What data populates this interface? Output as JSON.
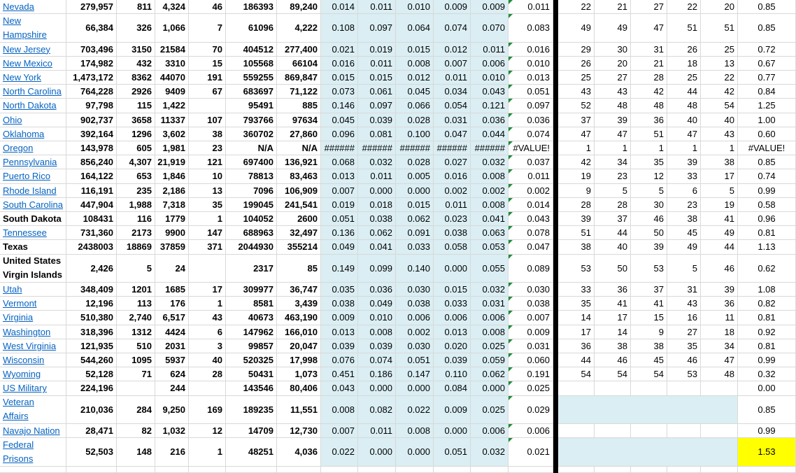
{
  "rows": [
    {
      "name": "Nevada",
      "cells": [
        "279,957",
        "811",
        "4,324",
        "46",
        "186393",
        "89,240",
        "0.014",
        "0.011",
        "0.010",
        "0.009",
        "0.009",
        "0.011",
        "22",
        "21",
        "27",
        "22",
        "20",
        "0.85"
      ]
    },
    {
      "name": "New Hampshire",
      "cells": [
        "66,384",
        "326",
        "1,066",
        "7",
        "61096",
        "4,222",
        "0.108",
        "0.097",
        "0.064",
        "0.074",
        "0.070",
        "0.083",
        "49",
        "49",
        "47",
        "51",
        "51",
        "0.85"
      ]
    },
    {
      "name": "New Jersey",
      "cells": [
        "703,496",
        "3150",
        "21584",
        "70",
        "404512",
        "277,400",
        "0.021",
        "0.019",
        "0.015",
        "0.012",
        "0.011",
        "0.016",
        "29",
        "30",
        "31",
        "26",
        "25",
        "0.72"
      ]
    },
    {
      "name": "New Mexico",
      "cells": [
        "174,982",
        "432",
        "3310",
        "15",
        "105568",
        "66104",
        "0.016",
        "0.011",
        "0.008",
        "0.007",
        "0.006",
        "0.010",
        "26",
        "20",
        "21",
        "18",
        "13",
        "0.67"
      ]
    },
    {
      "name": "New York",
      "cells": [
        "1,473,172",
        "8362",
        "44070",
        "191",
        "559255",
        "869,847",
        "0.015",
        "0.015",
        "0.012",
        "0.011",
        "0.010",
        "0.013",
        "25",
        "27",
        "28",
        "25",
        "22",
        "0.77"
      ]
    },
    {
      "name": "North Carolina",
      "cells": [
        "764,228",
        "2926",
        "9409",
        "67",
        "683697",
        "71,122",
        "0.073",
        "0.061",
        "0.045",
        "0.034",
        "0.043",
        "0.051",
        "43",
        "43",
        "42",
        "44",
        "42",
        "0.84"
      ]
    },
    {
      "name": "North Dakota",
      "cells": [
        "97,798",
        "115",
        "1,422",
        null,
        "95491",
        "885",
        "0.146",
        "0.097",
        "0.066",
        "0.054",
        "0.121",
        "0.097",
        "52",
        "48",
        "48",
        "48",
        "54",
        "1.25"
      ]
    },
    {
      "name": "Ohio",
      "cells": [
        "902,737",
        "3658",
        "11337",
        "107",
        "793766",
        "97634",
        "0.045",
        "0.039",
        "0.028",
        "0.031",
        "0.036",
        "0.036",
        "37",
        "39",
        "36",
        "40",
        "40",
        "1.00"
      ]
    },
    {
      "name": "Oklahoma",
      "cells": [
        "392,164",
        "1296",
        "3,602",
        "38",
        "360702",
        "27,860",
        "0.096",
        "0.081",
        "0.100",
        "0.047",
        "0.044",
        "0.074",
        "47",
        "47",
        "51",
        "47",
        "43",
        "0.60"
      ]
    },
    {
      "name": "Oregon",
      "cells": [
        "143,978",
        "605",
        "1,981",
        "23",
        "N/A",
        "N/A",
        "######",
        "######",
        "######",
        "######",
        "######",
        "#VALUE!",
        "1",
        "1",
        "1",
        "1",
        "1",
        "#VALUE!"
      ]
    },
    {
      "name": "Pennsylvania",
      "cells": [
        "856,240",
        "4,307",
        "21,919",
        "121",
        "697400",
        "136,921",
        "0.068",
        "0.032",
        "0.028",
        "0.027",
        "0.032",
        "0.037",
        "42",
        "34",
        "35",
        "39",
        "38",
        "0.85"
      ]
    },
    {
      "name": "Puerto Rico",
      "cells": [
        "164,122",
        "653",
        "1,846",
        "10",
        "78813",
        "83,463",
        "0.013",
        "0.011",
        "0.005",
        "0.016",
        "0.008",
        "0.011",
        "19",
        "23",
        "12",
        "33",
        "17",
        "0.74"
      ]
    },
    {
      "name": "Rhode Island",
      "cells": [
        "116,191",
        "235",
        "2,186",
        "13",
        "7096",
        "106,909",
        "0.007",
        "0.000",
        "0.000",
        "0.002",
        "0.002",
        "0.002",
        "9",
        "5",
        "5",
        "6",
        "5",
        "0.99"
      ]
    },
    {
      "name": "South Carolina",
      "cells": [
        "447,904",
        "1,988",
        "7,318",
        "35",
        "199045",
        "241,541",
        "0.019",
        "0.018",
        "0.015",
        "0.011",
        "0.008",
        "0.014",
        "28",
        "28",
        "30",
        "23",
        "19",
        "0.58"
      ]
    },
    {
      "name": "South Dakota",
      "cells": [
        "108431",
        "116",
        "1779",
        "1",
        "104052",
        "2600",
        "0.051",
        "0.038",
        "0.062",
        "0.023",
        "0.041",
        "0.043",
        "39",
        "37",
        "46",
        "38",
        "41",
        "0.96"
      ]
    },
    {
      "name": "Tennessee",
      "cells": [
        "731,360",
        "2173",
        "9900",
        "147",
        "688963",
        "32,497",
        "0.136",
        "0.062",
        "0.091",
        "0.038",
        "0.063",
        "0.078",
        "51",
        "44",
        "50",
        "45",
        "49",
        "0.81"
      ]
    },
    {
      "name": "Texas",
      "cells": [
        "2438003",
        "18869",
        "37859",
        "371",
        "2044930",
        "355214",
        "0.049",
        "0.041",
        "0.033",
        "0.058",
        "0.053",
        "0.047",
        "38",
        "40",
        "39",
        "49",
        "44",
        "1.13"
      ]
    },
    {
      "name": "United States Virgin Islands",
      "cells": [
        "2,426",
        "5",
        "24",
        null,
        "2317",
        "85",
        "0.149",
        "0.099",
        "0.140",
        "0.000",
        "0.055",
        "0.089",
        "53",
        "50",
        "53",
        "5",
        "46",
        "0.62"
      ]
    },
    {
      "name": "Utah",
      "cells": [
        "348,409",
        "1201",
        "1685",
        "17",
        "309977",
        "36,747",
        "0.035",
        "0.036",
        "0.030",
        "0.015",
        "0.032",
        "0.030",
        "33",
        "36",
        "37",
        "31",
        "39",
        "1.08"
      ]
    },
    {
      "name": "Vermont",
      "cells": [
        "12,196",
        "113",
        "176",
        "1",
        "8581",
        "3,439",
        "0.038",
        "0.049",
        "0.038",
        "0.033",
        "0.031",
        "0.038",
        "35",
        "41",
        "41",
        "43",
        "36",
        "0.82"
      ]
    },
    {
      "name": "Virginia",
      "cells": [
        "510,380",
        "2,740",
        "6,517",
        "43",
        "40673",
        "463,190",
        "0.009",
        "0.010",
        "0.006",
        "0.006",
        "0.006",
        "0.007",
        "14",
        "17",
        "15",
        "16",
        "11",
        "0.81"
      ]
    },
    {
      "name": "Washington",
      "cells": [
        "318,396",
        "1312",
        "4424",
        "6",
        "147962",
        "166,010",
        "0.013",
        "0.008",
        "0.002",
        "0.013",
        "0.008",
        "0.009",
        "17",
        "14",
        "9",
        "27",
        "18",
        "0.92"
      ]
    },
    {
      "name": "West Virginia",
      "cells": [
        "121,935",
        "510",
        "2031",
        "3",
        "99857",
        "20,047",
        "0.039",
        "0.039",
        "0.030",
        "0.020",
        "0.025",
        "0.031",
        "36",
        "38",
        "38",
        "35",
        "34",
        "0.81"
      ]
    },
    {
      "name": "Wisconsin",
      "cells": [
        "544,260",
        "1095",
        "5937",
        "40",
        "520325",
        "17,998",
        "0.076",
        "0.074",
        "0.051",
        "0.039",
        "0.059",
        "0.060",
        "44",
        "46",
        "45",
        "46",
        "47",
        "0.99"
      ]
    },
    {
      "name": "Wyoming",
      "cells": [
        "52,128",
        "71",
        "624",
        "28",
        "50431",
        "1,073",
        "0.451",
        "0.186",
        "0.147",
        "0.110",
        "0.062",
        "0.191",
        "54",
        "54",
        "54",
        "53",
        "48",
        "0.32"
      ]
    },
    {
      "name": "US Military",
      "cells": [
        "224,196",
        null,
        "244",
        null,
        "143546",
        "80,406",
        "0.043",
        "0.000",
        "0.000",
        "0.084",
        "0.000",
        "0.025",
        null,
        null,
        null,
        null,
        null,
        "0.00"
      ]
    },
    {
      "name": "Veteran Affairs",
      "cells": [
        "210,036",
        "284",
        "9,250",
        "169",
        "189235",
        "11,551",
        "0.008",
        "0.082",
        "0.022",
        "0.009",
        "0.025",
        "0.029",
        null,
        null,
        null,
        null,
        null,
        "0.85"
      ]
    },
    {
      "name": "Navajo Nation",
      "cells": [
        "28,471",
        "82",
        "1,032",
        "12",
        "14709",
        "12,730",
        "0.007",
        "0.011",
        "0.008",
        "0.000",
        "0.006",
        "0.006",
        null,
        null,
        null,
        null,
        null,
        "0.99"
      ]
    },
    {
      "name": "Federal Prisons",
      "cells": [
        "52,503",
        "148",
        "216",
        "1",
        "48251",
        "4,036",
        "0.022",
        "0.000",
        "0.000",
        "0.051",
        "0.032",
        "0.021",
        null,
        null,
        null,
        null,
        null,
        "1.53"
      ]
    }
  ]
}
